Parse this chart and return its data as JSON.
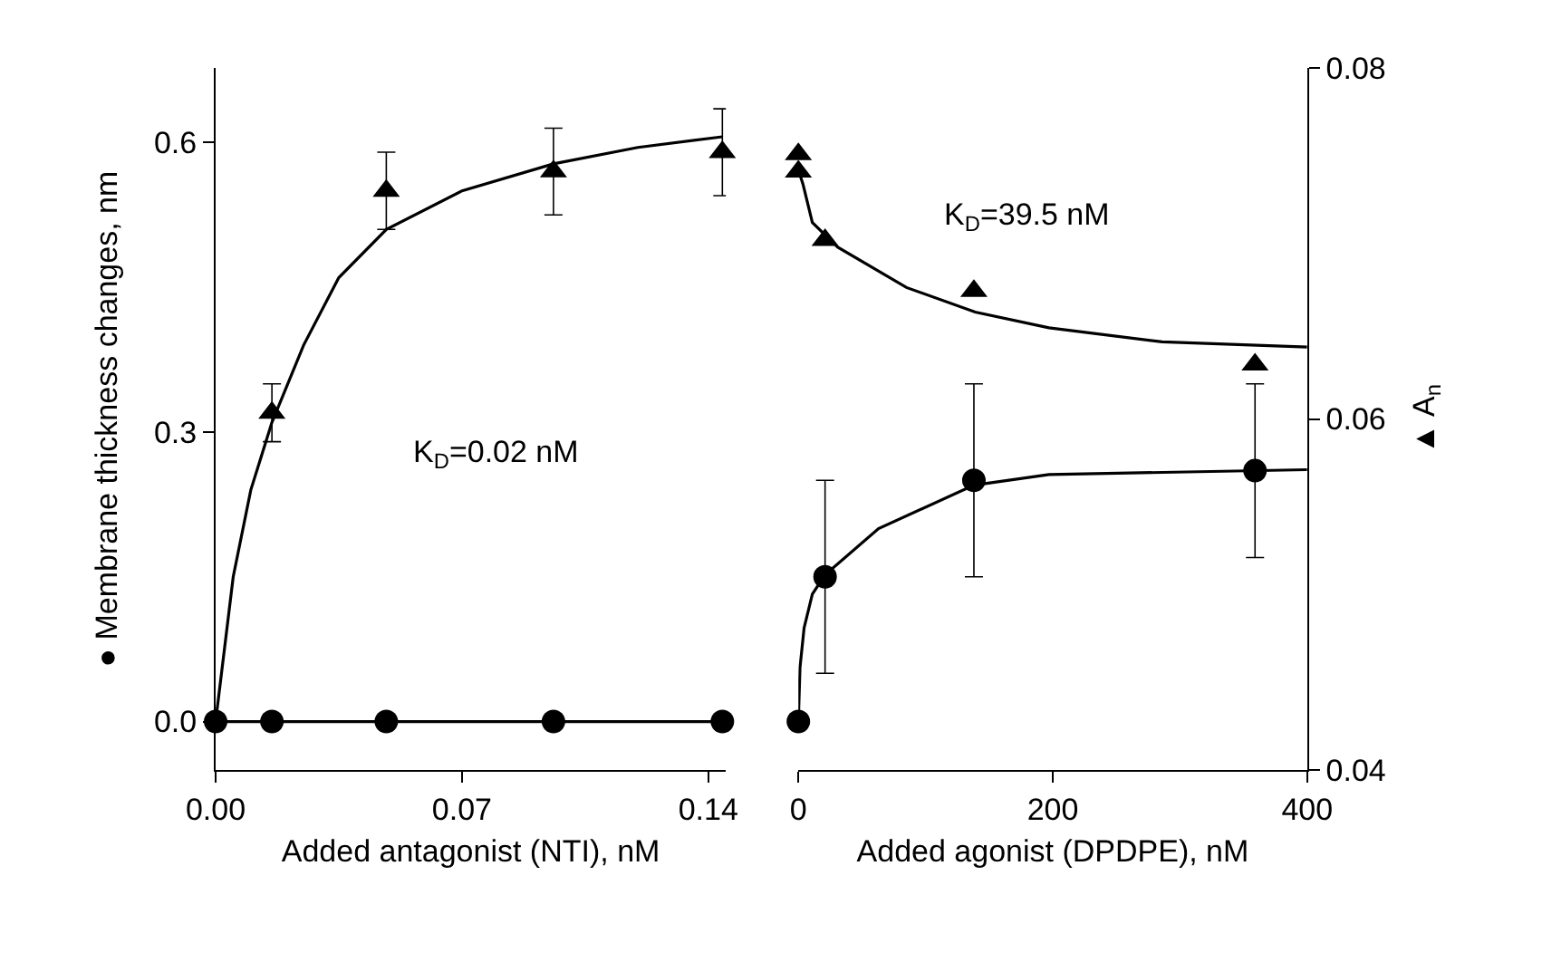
{
  "chart_data": [
    {
      "type": "scatter",
      "xlabel": "Added antagonist (NTI), nM",
      "ylabel": "● Membrane thickness changes, nm",
      "xlim": [
        0,
        0.145
      ],
      "xticks": [
        {
          "value": 0,
          "label": "0.00"
        },
        {
          "value": 0.07,
          "label": "0.07"
        },
        {
          "value": 0.14,
          "label": "0.14"
        }
      ],
      "ylim": [
        -0.05,
        0.677
      ],
      "yticks": [
        {
          "value": 0,
          "label": "0.0"
        },
        {
          "value": 0.3,
          "label": "0.3"
        },
        {
          "value": 0.6,
          "label": "0.6"
        }
      ],
      "annotations": [
        "K$_{D}$=0.02 nM"
      ],
      "series": [
        {
          "type": "line",
          "color": "#000000",
          "marker": "none",
          "x": [
            0,
            0.005,
            0.01,
            0.016,
            0.025,
            0.035,
            0.0485,
            0.07,
            0.096,
            0.12,
            0.144
          ],
          "values": [
            0,
            0.15,
            0.24,
            0.31,
            0.39,
            0.46,
            0.51,
            0.55,
            0.578,
            0.595,
            0.606
          ]
        },
        {
          "type": "line",
          "color": "#000000",
          "marker": "circle",
          "x": [
            0,
            0.016,
            0.0485,
            0.096,
            0.144
          ],
          "values": [
            0,
            0,
            0,
            0,
            0
          ]
        },
        {
          "color": "#000000",
          "marker": "triangle",
          "x": [
            0.016,
            0.0485,
            0.096,
            0.144
          ],
          "values": [
            0.32,
            0.55,
            0.57,
            0.59
          ],
          "errors": [
            0.03,
            0.04,
            0.045,
            0.045
          ]
        }
      ]
    },
    {
      "type": "scatter",
      "xlabel": "Added agonist (DPDPE), nM",
      "y2label": "▲ A$_{n}$",
      "xlim": [
        0,
        400
      ],
      "xticks": [
        0,
        200,
        400
      ],
      "ylim": [
        -0.05,
        0.677
      ],
      "y2lim": [
        0.04,
        0.08
      ],
      "y2ticks": [
        0.04,
        0.06,
        0.08
      ],
      "tick_labels": [
        "x",
        "y2"
      ],
      "annotations": [
        "K$_{D}$=39.5 nM"
      ],
      "series": [
        {
          "type": "line",
          "color": "#000000",
          "marker": "none",
          "x": [
            0,
            1.3,
            4.5,
            11,
            21,
            63,
            138,
            197,
            400
          ],
          "values": [
            0,
            0.056,
            0.097,
            0.132,
            0.152,
            0.2,
            0.245,
            0.256,
            0.261
          ]
        },
        {
          "color": "#000000",
          "marker": "circle",
          "x": [
            0,
            21,
            138,
            359
          ],
          "values": [
            0,
            0.15,
            0.25,
            0.26
          ],
          "errors": [
            null,
            0.1,
            0.1,
            0.09
          ]
        },
        {
          "type": "line",
          "axis": "y2",
          "color": "#000000",
          "marker": "none",
          "x": [
            0,
            3.6,
            11,
            31,
            85,
            139,
            197,
            286,
            400
          ],
          "values": [
            0.0742,
            0.0734,
            0.0712,
            0.0698,
            0.0675,
            0.0661,
            0.0652,
            0.0644,
            0.0641
          ]
        },
        {
          "axis": "y2",
          "color": "#000000",
          "marker": "triangle",
          "x": [
            0,
            0,
            21,
            138,
            359
          ],
          "values": [
            0.0751,
            0.0741,
            0.0702,
            0.0673,
            0.0631
          ]
        }
      ]
    }
  ]
}
